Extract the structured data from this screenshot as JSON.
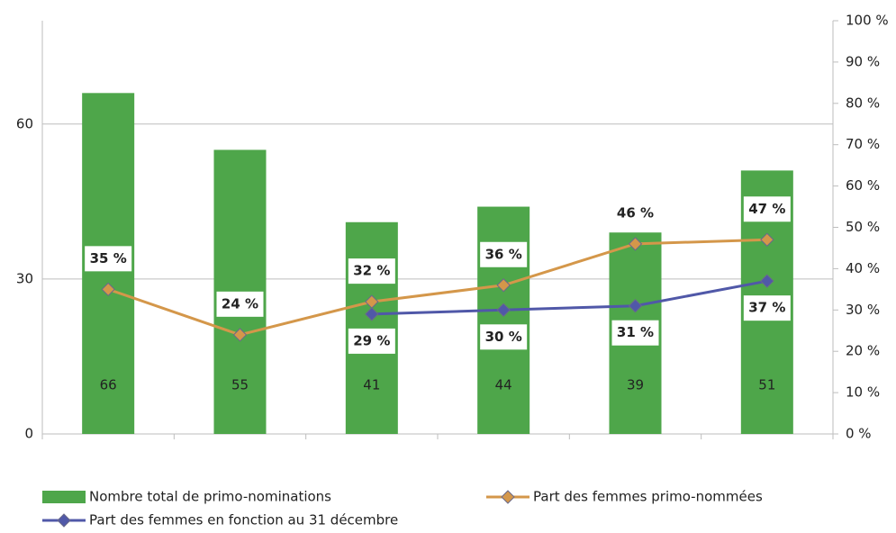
{
  "chart_data": {
    "type": "bar",
    "categories": [
      null,
      null,
      null,
      null,
      null,
      null
    ],
    "ylim": [
      0,
      80
    ],
    "yticks": [
      0,
      30,
      60
    ],
    "y2lim": [
      0,
      100
    ],
    "y2ticks": [
      {
        "value": 0,
        "label": "0 %"
      },
      {
        "value": 10,
        "label": "10 %"
      },
      {
        "value": 20,
        "label": "20 %"
      },
      {
        "value": 30,
        "label": "30 %"
      },
      {
        "value": 40,
        "label": "40 %"
      },
      {
        "value": 50,
        "label": "50 %"
      },
      {
        "value": 60,
        "label": "60 %"
      },
      {
        "value": 70,
        "label": "70 %"
      },
      {
        "value": 80,
        "label": "80 %"
      },
      {
        "value": 90,
        "label": "90 %"
      },
      {
        "value": 100,
        "label": "100 %"
      }
    ],
    "grid": true,
    "legend": "bottom",
    "series": [
      {
        "name": "Nombre total de primo-nominations",
        "type": "bar",
        "color": "#4ea64a",
        "values": [
          66,
          55,
          41,
          44,
          39,
          51
        ]
      },
      {
        "name": "Part des femmes primo-nommées",
        "type": "line",
        "axis": "y2",
        "color": "#d4974a",
        "values": [
          35,
          24,
          32,
          36,
          46,
          47
        ],
        "value_labels": [
          "35 %",
          "24 %",
          "32 %",
          "36 %",
          "46 %",
          "47 %"
        ]
      },
      {
        "name": "Part des femmes en fonction au 31 décembre",
        "type": "line",
        "axis": "y2",
        "color": "#5058a8",
        "values": [
          null,
          null,
          29,
          30,
          31,
          37
        ],
        "value_labels": [
          null,
          null,
          "29 %",
          "30 %",
          "31 %",
          "37 %"
        ]
      }
    ]
  }
}
